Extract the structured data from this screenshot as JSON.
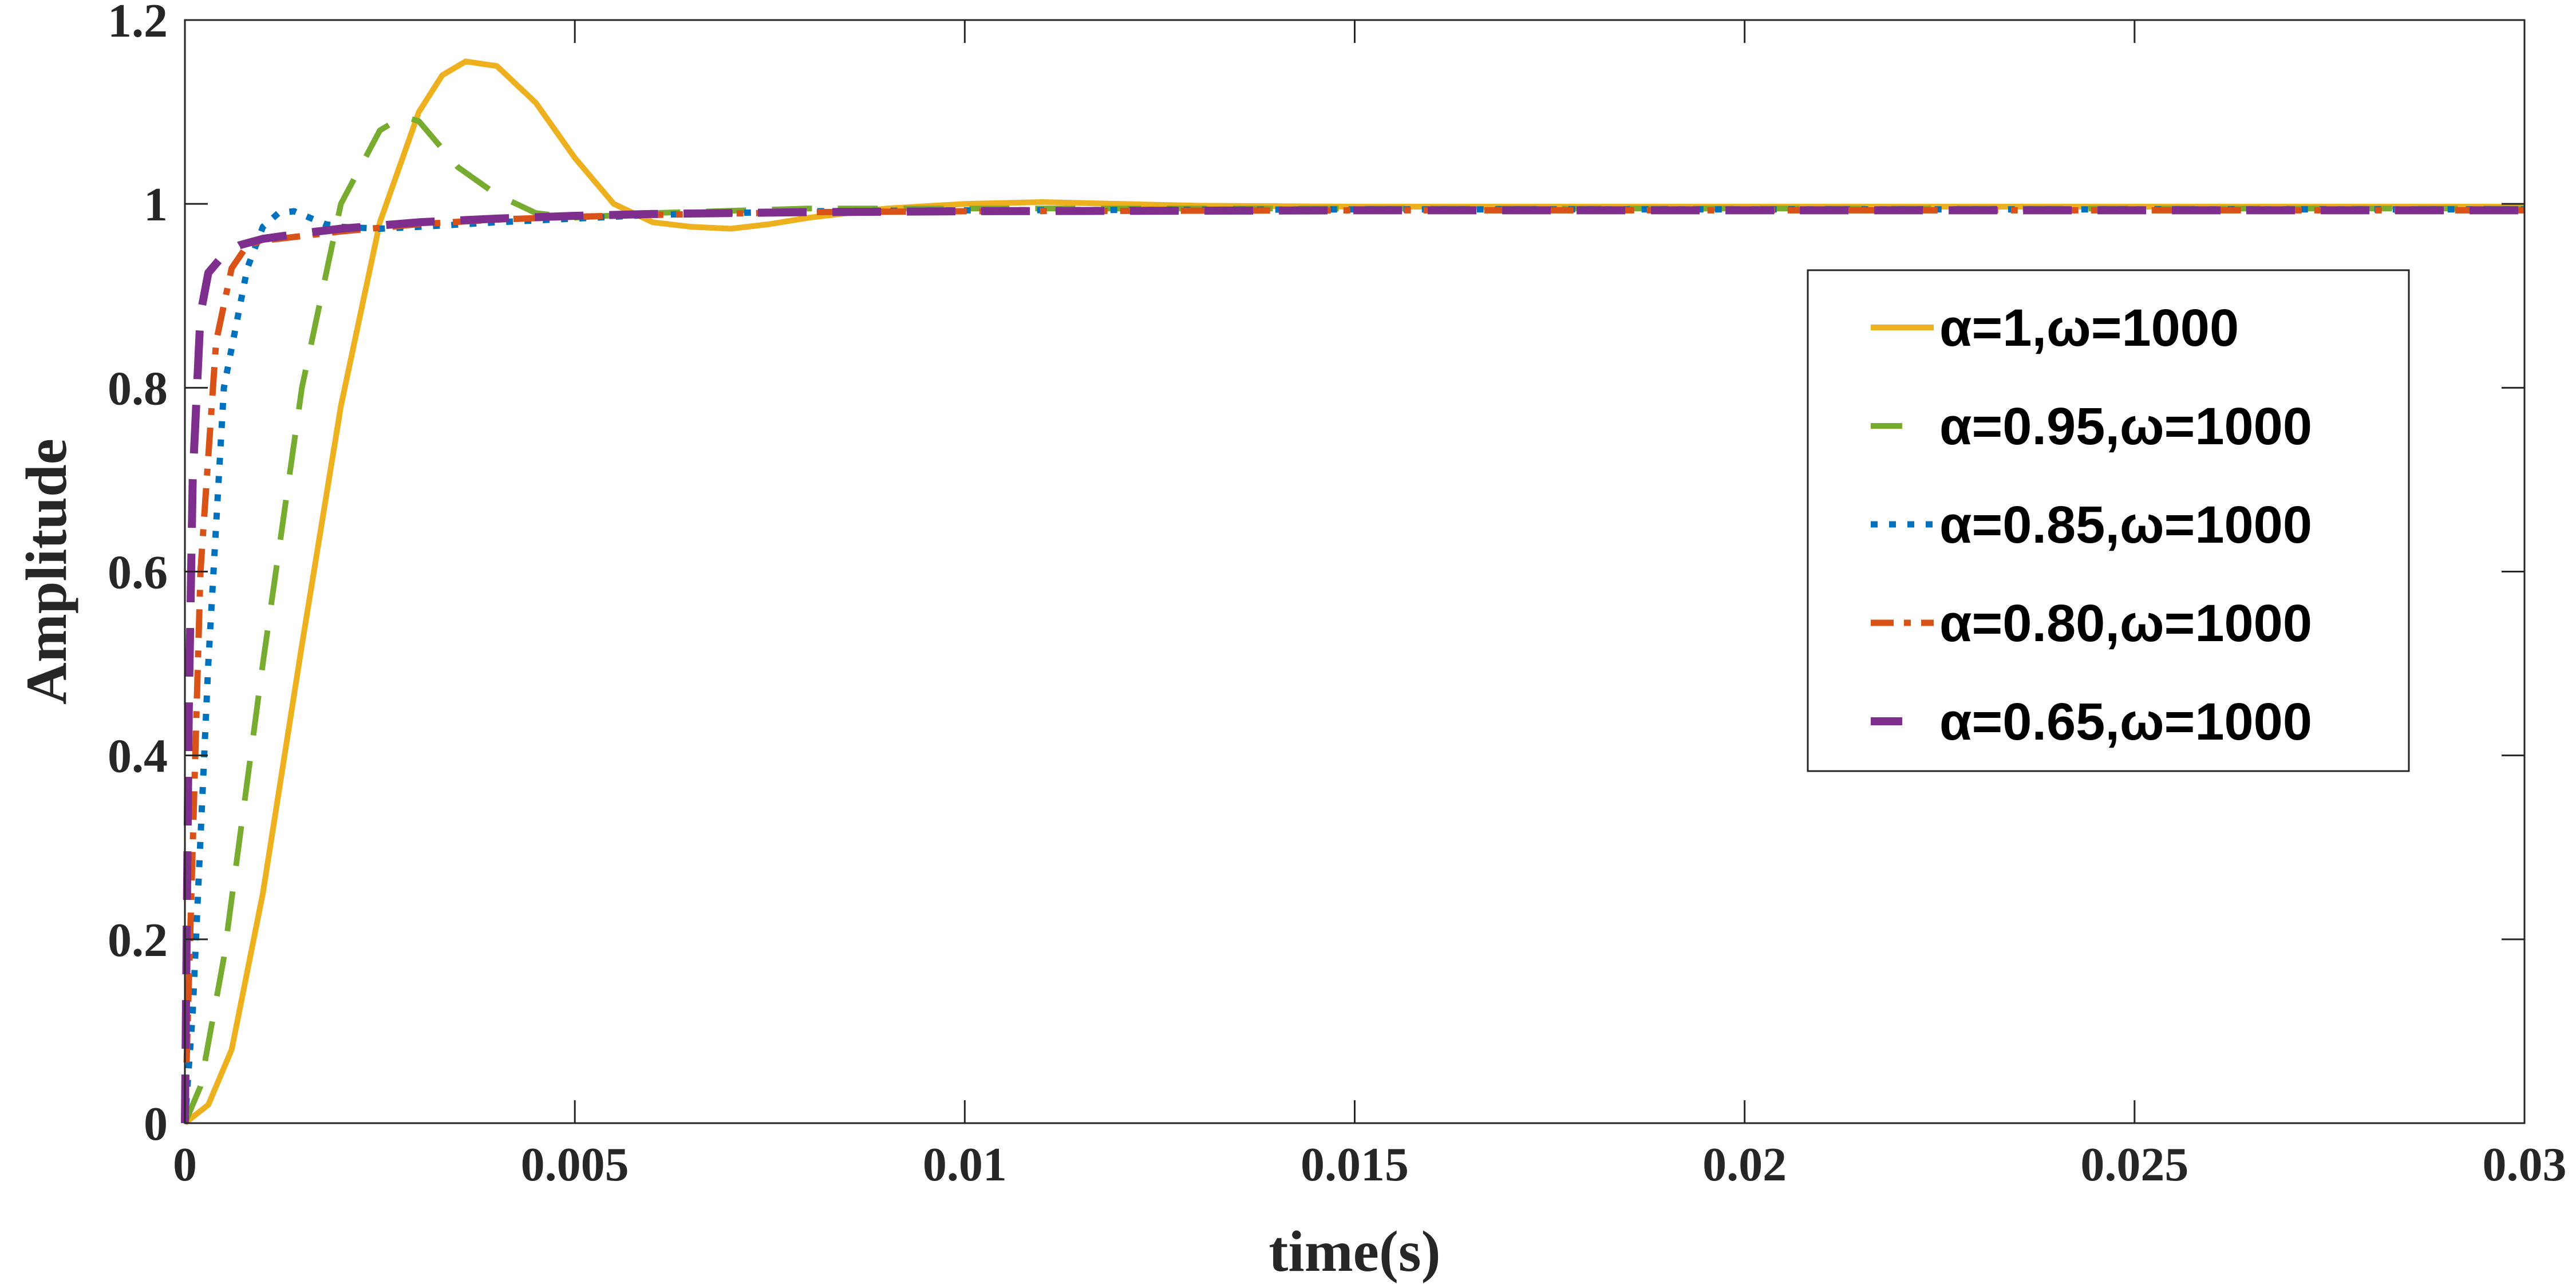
{
  "chart_data": {
    "type": "line",
    "title": "",
    "xlabel": "time(s)",
    "ylabel": "Amplitude",
    "xlim": [
      0,
      0.03
    ],
    "ylim": [
      0,
      1.2
    ],
    "xticks": [
      0,
      0.005,
      0.01,
      0.015,
      0.02,
      0.025,
      0.03
    ],
    "xtick_labels": [
      "0",
      "0.005",
      "0.01",
      "0.015",
      "0.02",
      "0.025",
      "0.03"
    ],
    "yticks": [
      0,
      0.2,
      0.4,
      0.6,
      0.8,
      1.0,
      1.2
    ],
    "ytick_labels": [
      "0",
      "0.2",
      "0.4",
      "0.6",
      "0.8",
      "1",
      "1.2"
    ],
    "grid": false,
    "legend_position": "right",
    "series": [
      {
        "name": "α=1,ω=1000",
        "color": "#EDB120",
        "dash": "solid",
        "x": [
          0,
          0.0003,
          0.0006,
          0.001,
          0.0015,
          0.002,
          0.0025,
          0.003,
          0.0033,
          0.0036,
          0.004,
          0.0045,
          0.005,
          0.0055,
          0.006,
          0.0065,
          0.007,
          0.0075,
          0.008,
          0.009,
          0.01,
          0.011,
          0.012,
          0.013,
          0.015,
          0.02,
          0.025,
          0.03
        ],
        "y": [
          0,
          0.02,
          0.08,
          0.25,
          0.52,
          0.78,
          0.98,
          1.1,
          1.14,
          1.155,
          1.15,
          1.11,
          1.05,
          1.0,
          0.98,
          0.975,
          0.973,
          0.978,
          0.985,
          0.995,
          1.0,
          1.002,
          1.0,
          0.998,
          0.997,
          0.997,
          0.997,
          0.997
        ]
      },
      {
        "name": "α=0.95,ω=1000",
        "color": "#77AC30",
        "dash": "dashed",
        "x": [
          0,
          0.0002,
          0.0005,
          0.001,
          0.0015,
          0.002,
          0.0025,
          0.0028,
          0.003,
          0.0035,
          0.004,
          0.0045,
          0.005,
          0.006,
          0.008,
          0.01,
          0.015,
          0.02,
          0.025,
          0.03
        ],
        "y": [
          0,
          0.04,
          0.18,
          0.5,
          0.8,
          1.0,
          1.08,
          1.095,
          1.09,
          1.04,
          1.01,
          0.99,
          0.985,
          0.99,
          0.995,
          0.995,
          0.995,
          0.995,
          0.995,
          0.995
        ]
      },
      {
        "name": "α=0.85,ω=1000",
        "color": "#0072BD",
        "dash": "dotted",
        "x": [
          0,
          0.0001,
          0.0003,
          0.0005,
          0.0008,
          0.001,
          0.0012,
          0.0014,
          0.0016,
          0.0018,
          0.002,
          0.0025,
          0.003,
          0.004,
          0.006,
          0.008,
          0.01,
          0.015,
          0.02,
          0.025,
          0.03
        ],
        "y": [
          0,
          0.12,
          0.5,
          0.8,
          0.93,
          0.975,
          0.99,
          0.992,
          0.985,
          0.978,
          0.975,
          0.973,
          0.975,
          0.98,
          0.988,
          0.992,
          0.993,
          0.994,
          0.994,
          0.994,
          0.994
        ]
      },
      {
        "name": "α=0.80,ω=1000",
        "color": "#D95319",
        "dash": "dashdot",
        "x": [
          0,
          0.0001,
          0.0002,
          0.0004,
          0.0006,
          0.0008,
          0.001,
          0.0015,
          0.002,
          0.003,
          0.004,
          0.005,
          0.006,
          0.008,
          0.01,
          0.015,
          0.02,
          0.025,
          0.03
        ],
        "y": [
          0,
          0.3,
          0.6,
          0.85,
          0.93,
          0.955,
          0.96,
          0.965,
          0.97,
          0.978,
          0.983,
          0.986,
          0.988,
          0.991,
          0.992,
          0.993,
          0.993,
          0.993,
          0.993
        ]
      },
      {
        "name": "α=0.65,ω=1000",
        "color": "#7E2F8E",
        "dash": "longdash",
        "x": [
          0,
          5e-05,
          0.0001,
          0.0002,
          0.0003,
          0.0005,
          0.0007,
          0.001,
          0.0015,
          0.002,
          0.003,
          0.004,
          0.005,
          0.006,
          0.008,
          0.01,
          0.015,
          0.02,
          0.025,
          0.03
        ],
        "y": [
          0,
          0.45,
          0.7,
          0.88,
          0.925,
          0.945,
          0.955,
          0.962,
          0.968,
          0.973,
          0.98,
          0.984,
          0.987,
          0.989,
          0.991,
          0.992,
          0.993,
          0.993,
          0.993,
          0.993
        ]
      }
    ]
  }
}
